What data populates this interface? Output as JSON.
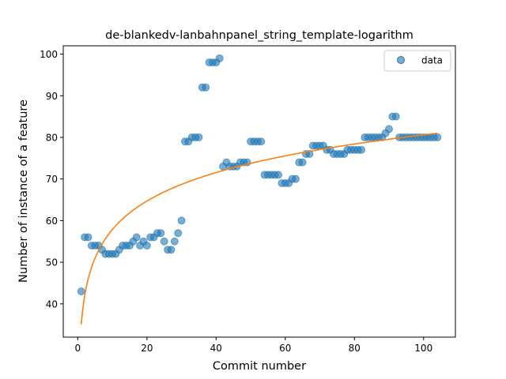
{
  "chart_data": {
    "type": "scatter",
    "title": "de-blankedv-lanbahnpanel_string_template-logarithm",
    "xlabel": "Commit number",
    "ylabel": "Number of instance of a feature",
    "xlim": [
      -4.2,
      109.2
    ],
    "ylim": [
      32,
      102
    ],
    "xticks": [
      0,
      20,
      40,
      60,
      80,
      100
    ],
    "yticks": [
      40,
      50,
      60,
      70,
      80,
      90,
      100
    ],
    "grid": false,
    "legend": {
      "position": "top-right",
      "entries": [
        "data"
      ]
    },
    "colors": {
      "data": "#1f77b4",
      "fit": "#ff7f0e"
    },
    "series": [
      {
        "name": "data",
        "kind": "scatter",
        "x": [
          1,
          2,
          3,
          4,
          5,
          6,
          7,
          8,
          9,
          10,
          11,
          12,
          13,
          14,
          15,
          16,
          17,
          18,
          19,
          20,
          21,
          22,
          23,
          24,
          25,
          26,
          27,
          28,
          29,
          30,
          31,
          32,
          33,
          34,
          35,
          36,
          37,
          38,
          39,
          40,
          41,
          42,
          43,
          44,
          45,
          46,
          47,
          48,
          49,
          50,
          51,
          52,
          53,
          54,
          55,
          56,
          57,
          58,
          59,
          60,
          61,
          62,
          63,
          64,
          65,
          66,
          67,
          68,
          69,
          70,
          71,
          72,
          73,
          74,
          75,
          76,
          77,
          78,
          79,
          80,
          81,
          82,
          83,
          84,
          85,
          86,
          87,
          88,
          89,
          90,
          91,
          92,
          93,
          94,
          95,
          96,
          97,
          98,
          99,
          100,
          101,
          102,
          103,
          104
        ],
        "y": [
          43,
          56,
          56,
          54,
          54,
          54,
          53,
          52,
          52,
          52,
          52,
          53,
          54,
          54,
          54,
          55,
          56,
          54,
          55,
          54,
          56,
          56,
          57,
          57,
          55,
          53,
          53,
          55,
          57,
          60,
          79,
          79,
          80,
          80,
          80,
          92,
          92,
          98,
          98,
          98,
          99,
          73,
          74,
          73,
          73,
          73,
          74,
          74,
          74,
          79,
          79,
          79,
          79,
          71,
          71,
          71,
          71,
          71,
          69,
          69,
          69,
          70,
          70,
          74,
          74,
          76,
          76,
          78,
          78,
          78,
          78,
          77,
          77,
          76,
          76,
          76,
          76,
          77,
          77,
          77,
          77,
          77,
          80,
          80,
          80,
          80,
          80,
          80,
          81,
          82,
          85,
          85,
          80,
          80,
          80,
          80,
          80,
          80,
          80,
          80,
          80,
          80,
          80,
          80
        ]
      },
      {
        "name": "",
        "kind": "line",
        "formula": "y = 35.1 + 9.88 * ln(x)",
        "a": 35.1,
        "b": 9.88,
        "x_start": 1,
        "x_end": 104
      }
    ]
  }
}
